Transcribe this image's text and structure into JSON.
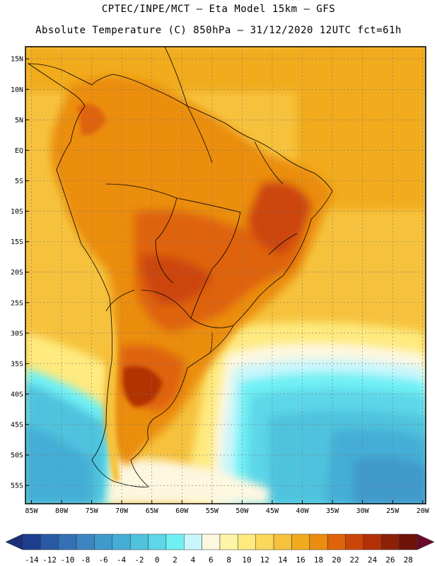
{
  "header": {
    "line1": "CPTEC/INPE/MCT –  Eta Model 15km – GFS",
    "line2": "Absolute Temperature (C) 850hPa – 31/12/2020 12UTC fct=61h"
  },
  "map": {
    "lat_labels": [
      "15N",
      "10N",
      "5N",
      "EQ",
      "5S",
      "10S",
      "15S",
      "20S",
      "25S",
      "30S",
      "35S",
      "40S",
      "45S",
      "50S",
      "55S"
    ],
    "lat_values": [
      15,
      10,
      5,
      0,
      -5,
      -10,
      -15,
      -20,
      -25,
      -30,
      -35,
      -40,
      -45,
      -50,
      -55
    ],
    "lon_labels": [
      "85W",
      "80W",
      "75W",
      "70W",
      "65W",
      "60W",
      "55W",
      "50W",
      "45W",
      "40W",
      "35W",
      "30W",
      "25W",
      "20W"
    ],
    "lon_values": [
      -85,
      -80,
      -75,
      -70,
      -65,
      -60,
      -55,
      -50,
      -45,
      -40,
      -35,
      -30,
      -25,
      -20
    ],
    "lon_range": [
      -86,
      -19.5
    ],
    "lat_range": [
      -58,
      17
    ]
  },
  "colorbar": {
    "labels": [
      "-14",
      "-12",
      "-10",
      "-8",
      "-6",
      "-4",
      "-2",
      "0",
      "2",
      "4",
      "6",
      "8",
      "10",
      "12",
      "14",
      "16",
      "18",
      "20",
      "22",
      "24",
      "26",
      "28"
    ],
    "colors": [
      "#1d3d8f",
      "#2a5aa3",
      "#3470b3",
      "#3b86c2",
      "#4099cb",
      "#45aed6",
      "#4fc3de",
      "#5dd6e8",
      "#6ff0f5",
      "#c9f6fb",
      "#fdf7e0",
      "#fff4a6",
      "#feea7e",
      "#fbd75a",
      "#f6c23d",
      "#f1ab1c",
      "#eb8d0f",
      "#df6409",
      "#cc4508",
      "#b23006",
      "#8e2008",
      "#6f1209"
    ],
    "left_arrow_color": "#1a2f78",
    "right_arrow_color": "#6a0a2a"
  }
}
